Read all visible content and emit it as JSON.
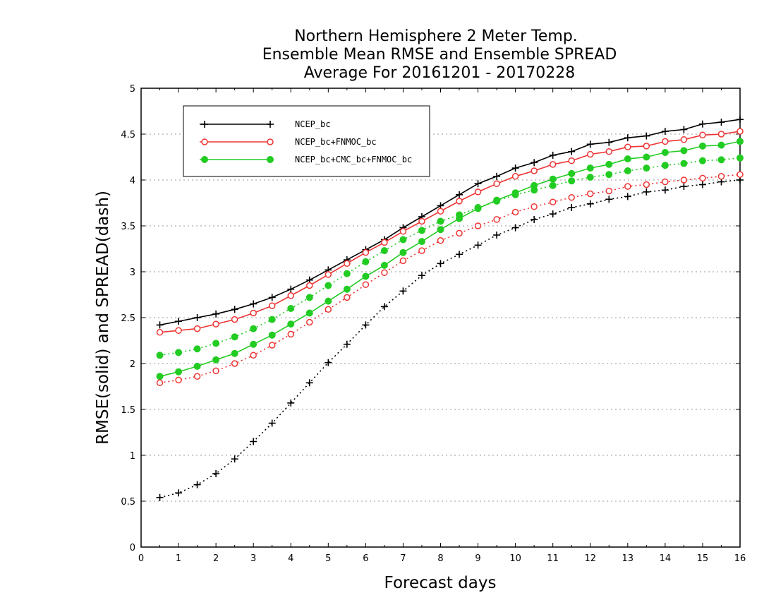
{
  "chart_data": {
    "type": "line",
    "title": [
      "Northern Hemisphere 2 Meter Temp.",
      "Ensemble Mean RMSE and Ensemble SPREAD",
      "Average For 20161201 - 20170228"
    ],
    "xlabel": "Forecast days",
    "ylabel": "RMSE(solid) and SPREAD(dash)",
    "xlim": [
      0,
      16
    ],
    "ylim": [
      0,
      5
    ],
    "x_ticks": [
      "0",
      "1",
      "2",
      "3",
      "4",
      "5",
      "6",
      "7",
      "8",
      "9",
      "10",
      "11",
      "12",
      "13",
      "14",
      "15",
      "16"
    ],
    "y_ticks": [
      "0",
      "0.5",
      "1",
      "1.5",
      "2",
      "2.5",
      "3",
      "3.5",
      "4",
      "4.5",
      "5"
    ],
    "grid": "horizontal dotted",
    "legend_position": "top-left",
    "x": [
      0.5,
      1,
      1.5,
      2,
      2.5,
      3,
      3.5,
      4,
      4.5,
      5,
      5.5,
      6,
      6.5,
      7,
      7.5,
      8,
      8.5,
      9,
      9.5,
      10,
      10.5,
      11,
      11.5,
      12,
      12.5,
      13,
      13.5,
      14,
      14.5,
      15,
      15.5,
      16
    ],
    "series": [
      {
        "name": "NCEP_bc",
        "metric": "RMSE",
        "line": "solid",
        "marker": "plus",
        "color": "#000000",
        "legend": true,
        "values": [
          2.42,
          2.46,
          2.5,
          2.54,
          2.59,
          2.65,
          2.72,
          2.81,
          2.91,
          3.02,
          3.13,
          3.24,
          3.35,
          3.48,
          3.6,
          3.72,
          3.84,
          3.96,
          4.04,
          4.13,
          4.19,
          4.27,
          4.31,
          4.39,
          4.41,
          4.46,
          4.48,
          4.53,
          4.55,
          4.61,
          4.63,
          4.66
        ]
      },
      {
        "name": "NCEP_bc+FNMOC_bc",
        "metric": "RMSE",
        "line": "solid",
        "marker": "open-circle",
        "color": "#ee3333",
        "legend": true,
        "values": [
          2.34,
          2.36,
          2.38,
          2.43,
          2.48,
          2.55,
          2.63,
          2.74,
          2.85,
          2.97,
          3.09,
          3.21,
          3.32,
          3.44,
          3.55,
          3.66,
          3.77,
          3.87,
          3.96,
          4.04,
          4.1,
          4.17,
          4.21,
          4.28,
          4.31,
          4.36,
          4.37,
          4.42,
          4.44,
          4.49,
          4.5,
          4.53
        ]
      },
      {
        "name": "NCEP_bc+CMC_bc+FNMOC_bc",
        "metric": "RMSE",
        "line": "solid",
        "marker": "filled-circle",
        "color": "#22cc22",
        "legend": true,
        "values": [
          1.86,
          1.91,
          1.97,
          2.04,
          2.11,
          2.21,
          2.31,
          2.43,
          2.55,
          2.68,
          2.81,
          2.95,
          3.07,
          3.21,
          3.33,
          3.46,
          3.58,
          3.69,
          3.78,
          3.86,
          3.94,
          4.01,
          4.07,
          4.13,
          4.17,
          4.23,
          4.25,
          4.3,
          4.32,
          4.37,
          4.38,
          4.42
        ]
      },
      {
        "name": "NCEP_bc",
        "metric": "SPREAD",
        "line": "dotted",
        "marker": "plus",
        "color": "#000000",
        "legend": false,
        "values": [
          0.54,
          0.59,
          0.68,
          0.8,
          0.96,
          1.15,
          1.35,
          1.57,
          1.79,
          2.01,
          2.21,
          2.42,
          2.62,
          2.79,
          2.96,
          3.09,
          3.19,
          3.29,
          3.4,
          3.48,
          3.57,
          3.63,
          3.7,
          3.74,
          3.79,
          3.82,
          3.87,
          3.89,
          3.93,
          3.95,
          3.98,
          4.0
        ]
      },
      {
        "name": "NCEP_bc+FNMOC_bc",
        "metric": "SPREAD",
        "line": "dotted",
        "marker": "open-circle",
        "color": "#ee3333",
        "legend": false,
        "values": [
          1.79,
          1.82,
          1.86,
          1.92,
          2.0,
          2.09,
          2.2,
          2.32,
          2.45,
          2.59,
          2.72,
          2.86,
          2.99,
          3.12,
          3.23,
          3.34,
          3.42,
          3.5,
          3.57,
          3.65,
          3.71,
          3.76,
          3.81,
          3.85,
          3.88,
          3.93,
          3.95,
          3.98,
          4.0,
          4.02,
          4.04,
          4.06
        ]
      },
      {
        "name": "NCEP_bc+CMC_bc+FNMOC_bc",
        "metric": "SPREAD",
        "line": "dotted",
        "marker": "filled-circle",
        "color": "#22cc22",
        "legend": false,
        "values": [
          2.09,
          2.12,
          2.16,
          2.22,
          2.29,
          2.38,
          2.48,
          2.6,
          2.72,
          2.85,
          2.98,
          3.11,
          3.23,
          3.35,
          3.45,
          3.55,
          3.62,
          3.7,
          3.77,
          3.84,
          3.89,
          3.94,
          3.99,
          4.03,
          4.06,
          4.1,
          4.13,
          4.16,
          4.18,
          4.21,
          4.22,
          4.24
        ]
      }
    ]
  }
}
